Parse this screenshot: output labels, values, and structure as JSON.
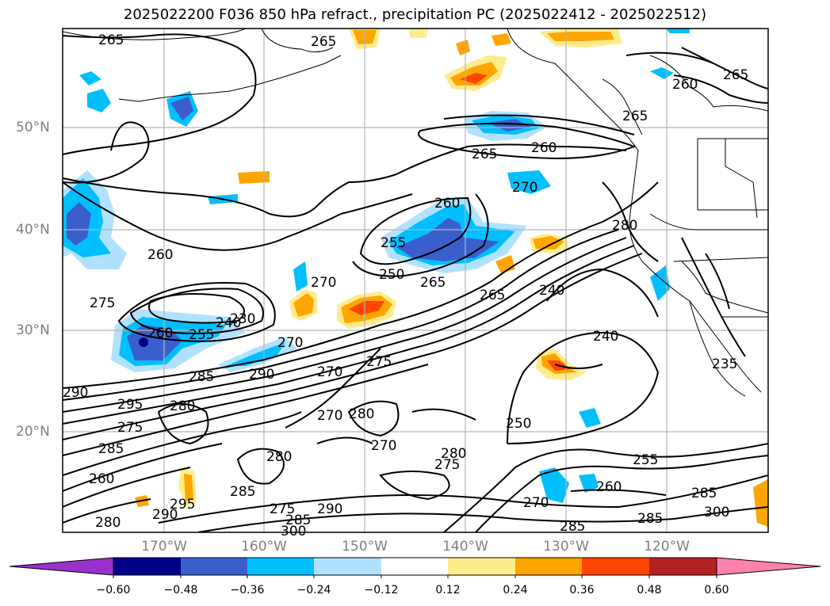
{
  "title": "2025022200 F036 850 hPa refract., precipitation PC (2025022412 - 2025022512)",
  "lat_labels": [
    "50°N",
    "40°N",
    "30°N",
    "20°N"
  ],
  "lon_labels": [
    "170°W",
    "160°W",
    "150°W",
    "140°W",
    "130°W",
    "120°W"
  ],
  "colorbar": {
    "ticks": [
      "−0.60",
      "−0.48",
      "−0.36",
      "−0.24",
      "−0.12",
      "0.12",
      "0.24",
      "0.36",
      "0.48",
      "0.60"
    ],
    "colors": [
      "#9932cc",
      "#00008b",
      "#3a5fcd",
      "#00bfff",
      "#b0e2ff",
      "#ffffff",
      "#ffec8b",
      "#ffa500",
      "#ff4500",
      "#b22222",
      "#ff82ab"
    ]
  },
  "contour_labels": [
    "265",
    "265",
    "260",
    "265",
    "265",
    "260",
    "265",
    "270",
    "280",
    "260",
    "255",
    "250",
    "265",
    "260",
    "275",
    "270",
    "260",
    "255",
    "230",
    "240",
    "270",
    "285",
    "290",
    "290",
    "295",
    "275",
    "280",
    "270",
    "275",
    "240",
    "265",
    "280",
    "240",
    "270",
    "280",
    "275",
    "250",
    "255",
    "285",
    "280",
    "285",
    "290",
    "295",
    "290",
    "275",
    "285",
    "280",
    "300",
    "300",
    "285",
    "260",
    "270",
    "285",
    "235",
    "270",
    "285",
    "260"
  ]
}
